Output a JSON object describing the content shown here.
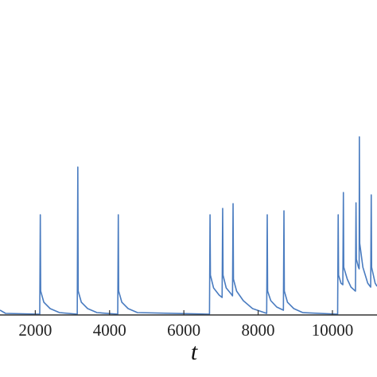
{
  "chart_data": {
    "type": "line",
    "x_label": "t",
    "x": [
      1050,
      1200,
      2120,
      2135,
      2145,
      2230,
      2400,
      2650,
      3130,
      3145,
      3155,
      3240,
      3410,
      3660,
      4220,
      4235,
      4245,
      4330,
      4500,
      4750,
      6690,
      6705,
      6715,
      6800,
      6950,
      7030,
      7045,
      7055,
      7140,
      7280,
      7310,
      7325,
      7335,
      7420,
      7600,
      7850,
      8230,
      8245,
      8255,
      8340,
      8500,
      8680,
      8695,
      8705,
      8790,
      8960,
      9200,
      10140,
      10155,
      10165,
      10230,
      10280,
      10295,
      10305,
      10400,
      10500,
      10620,
      10635,
      10645,
      10700,
      10720,
      10725,
      10735,
      10820,
      10950,
      11030,
      11045,
      11055,
      11150,
      11200
    ],
    "series": [
      {
        "color": "#4a7cc0",
        "values": [
          6,
          2,
          1,
          126,
          30,
          16,
          8,
          3,
          1,
          186,
          30,
          16,
          8,
          3,
          1,
          126,
          30,
          16,
          8,
          3,
          1,
          126,
          50,
          34,
          25,
          22,
          134,
          50,
          34,
          26,
          24,
          140,
          45,
          30,
          18,
          8,
          2,
          126,
          30,
          18,
          10,
          6,
          131,
          30,
          16,
          8,
          3,
          1,
          126,
          50,
          40,
          38,
          154,
          60,
          45,
          35,
          30,
          141,
          70,
          60,
          58,
          224,
          90,
          60,
          40,
          35,
          151,
          60,
          40,
          36
        ]
      }
    ],
    "xlim": [
      1050,
      11200
    ],
    "ylim": [
      0,
      396
    ],
    "xticks": [
      2000,
      4000,
      6000,
      8000,
      10000
    ]
  }
}
